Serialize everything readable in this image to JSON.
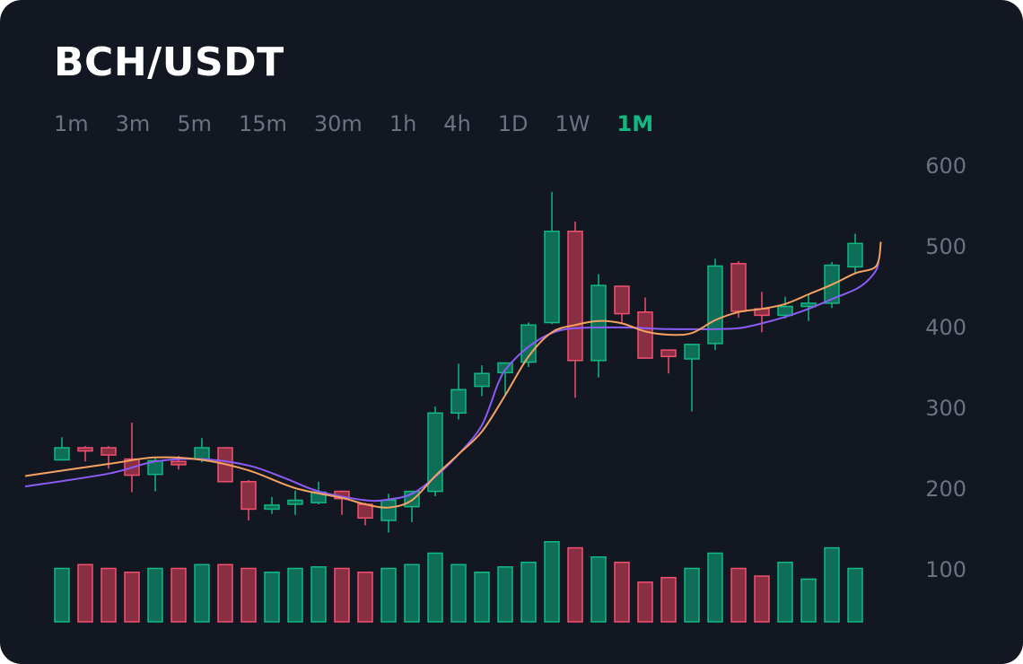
{
  "header": {
    "title": "BCH/USDT"
  },
  "timeframes": {
    "items": [
      "1m",
      "3m",
      "5m",
      "15m",
      "30m",
      "1h",
      "4h",
      "1D",
      "1W",
      "1M"
    ],
    "active_index": 9
  },
  "colors": {
    "background": "#131722",
    "up": "#10b981",
    "up_fill": "#0e6e57",
    "down": "#f0506e",
    "down_fill": "#8a2f43",
    "ma_short": "#f4a261",
    "ma_long": "#8b5cf6",
    "axis_text": "#6b7280",
    "accent": "#10b981"
  },
  "chart_data": {
    "type": "candlestick",
    "y_ticks": [
      600,
      500,
      400,
      300,
      200,
      100
    ],
    "ylim": [
      40,
      610
    ],
    "grid": false,
    "candles": [
      {
        "open": 235,
        "close": 250,
        "high": 263,
        "low": 234
      },
      {
        "open": 250,
        "close": 246,
        "high": 252,
        "low": 233
      },
      {
        "open": 250,
        "close": 241,
        "high": 252,
        "low": 224
      },
      {
        "open": 236,
        "close": 216,
        "high": 281,
        "low": 195
      },
      {
        "open": 217,
        "close": 234,
        "high": 238,
        "low": 196
      },
      {
        "open": 233,
        "close": 229,
        "high": 240,
        "low": 223
      },
      {
        "open": 236,
        "close": 250,
        "high": 262,
        "low": 232
      },
      {
        "open": 250,
        "close": 208,
        "high": 250,
        "low": 208
      },
      {
        "open": 208,
        "close": 174,
        "high": 210,
        "low": 160
      },
      {
        "open": 174,
        "close": 179,
        "high": 189,
        "low": 168
      },
      {
        "open": 180,
        "close": 185,
        "high": 197,
        "low": 167
      },
      {
        "open": 182,
        "close": 195,
        "high": 208,
        "low": 180
      },
      {
        "open": 196,
        "close": 187,
        "high": 197,
        "low": 167
      },
      {
        "open": 180,
        "close": 163,
        "high": 182,
        "low": 154
      },
      {
        "open": 160,
        "close": 185,
        "high": 193,
        "low": 145
      },
      {
        "open": 177,
        "close": 196,
        "high": 196,
        "low": 158
      },
      {
        "open": 196,
        "close": 293,
        "high": 301,
        "low": 190
      },
      {
        "open": 293,
        "close": 322,
        "high": 354,
        "low": 285
      },
      {
        "open": 326,
        "close": 342,
        "high": 352,
        "low": 314
      },
      {
        "open": 343,
        "close": 355,
        "high": 355,
        "low": 315
      },
      {
        "open": 356,
        "close": 402,
        "high": 405,
        "low": 350
      },
      {
        "open": 405,
        "close": 518,
        "high": 567,
        "low": 403
      },
      {
        "open": 518,
        "close": 358,
        "high": 530,
        "low": 312
      },
      {
        "open": 358,
        "close": 451,
        "high": 465,
        "low": 337
      },
      {
        "open": 450,
        "close": 416,
        "high": 450,
        "low": 404
      },
      {
        "open": 418,
        "close": 361,
        "high": 436,
        "low": 361
      },
      {
        "open": 371,
        "close": 363,
        "high": 371,
        "low": 342
      },
      {
        "open": 360,
        "close": 378,
        "high": 378,
        "low": 295
      },
      {
        "open": 379,
        "close": 475,
        "high": 484,
        "low": 371
      },
      {
        "open": 478,
        "close": 419,
        "high": 481,
        "low": 411
      },
      {
        "open": 422,
        "close": 414,
        "high": 443,
        "low": 393
      },
      {
        "open": 414,
        "close": 425,
        "high": 437,
        "low": 410
      },
      {
        "open": 425,
        "close": 429,
        "high": 440,
        "low": 407
      },
      {
        "open": 429,
        "close": 476,
        "high": 480,
        "low": 423
      },
      {
        "open": 474,
        "close": 503,
        "high": 515,
        "low": 467
      }
    ],
    "volumes": [
      70,
      75,
      70,
      65,
      70,
      70,
      75,
      75,
      70,
      65,
      70,
      72,
      70,
      65,
      70,
      75,
      90,
      75,
      65,
      72,
      78,
      105,
      97,
      85,
      78,
      52,
      58,
      70,
      90,
      70,
      60,
      78,
      56,
      97,
      70
    ],
    "ma_short": [
      [
        0,
        215
      ],
      [
        2,
        230
      ],
      [
        4,
        238
      ],
      [
        6,
        235
      ],
      [
        8,
        222
      ],
      [
        10,
        200
      ],
      [
        12,
        188
      ],
      [
        13,
        180
      ],
      [
        14,
        176
      ],
      [
        15,
        185
      ],
      [
        16,
        215
      ],
      [
        17,
        242
      ],
      [
        18,
        270
      ],
      [
        19,
        315
      ],
      [
        20,
        363
      ],
      [
        21,
        393
      ],
      [
        22,
        402
      ],
      [
        23,
        407
      ],
      [
        24,
        404
      ],
      [
        25,
        394
      ],
      [
        26,
        390
      ],
      [
        27,
        392
      ],
      [
        28,
        408
      ],
      [
        29,
        418
      ],
      [
        30,
        422
      ],
      [
        31,
        428
      ],
      [
        32,
        440
      ],
      [
        33,
        452
      ],
      [
        34,
        466
      ],
      [
        34.9,
        475
      ],
      [
        35.1,
        505
      ]
    ],
    "ma_long": [
      [
        0,
        202
      ],
      [
        2,
        218
      ],
      [
        4,
        233
      ],
      [
        6,
        236
      ],
      [
        8,
        228
      ],
      [
        9.5,
        213
      ],
      [
        11,
        196
      ],
      [
        13,
        185
      ],
      [
        14,
        186
      ],
      [
        15,
        193
      ],
      [
        16,
        214
      ],
      [
        17,
        242
      ],
      [
        18,
        278
      ],
      [
        18.7,
        330
      ],
      [
        19.1,
        350
      ],
      [
        20,
        375
      ],
      [
        21,
        392
      ],
      [
        22,
        398
      ],
      [
        24,
        399
      ],
      [
        26,
        397
      ],
      [
        28,
        397
      ],
      [
        29,
        398
      ],
      [
        30,
        404
      ],
      [
        31,
        412
      ],
      [
        32,
        422
      ],
      [
        33,
        434
      ],
      [
        34,
        446
      ],
      [
        34.5,
        456
      ],
      [
        34.9,
        470
      ],
      [
        35,
        480
      ]
    ]
  }
}
